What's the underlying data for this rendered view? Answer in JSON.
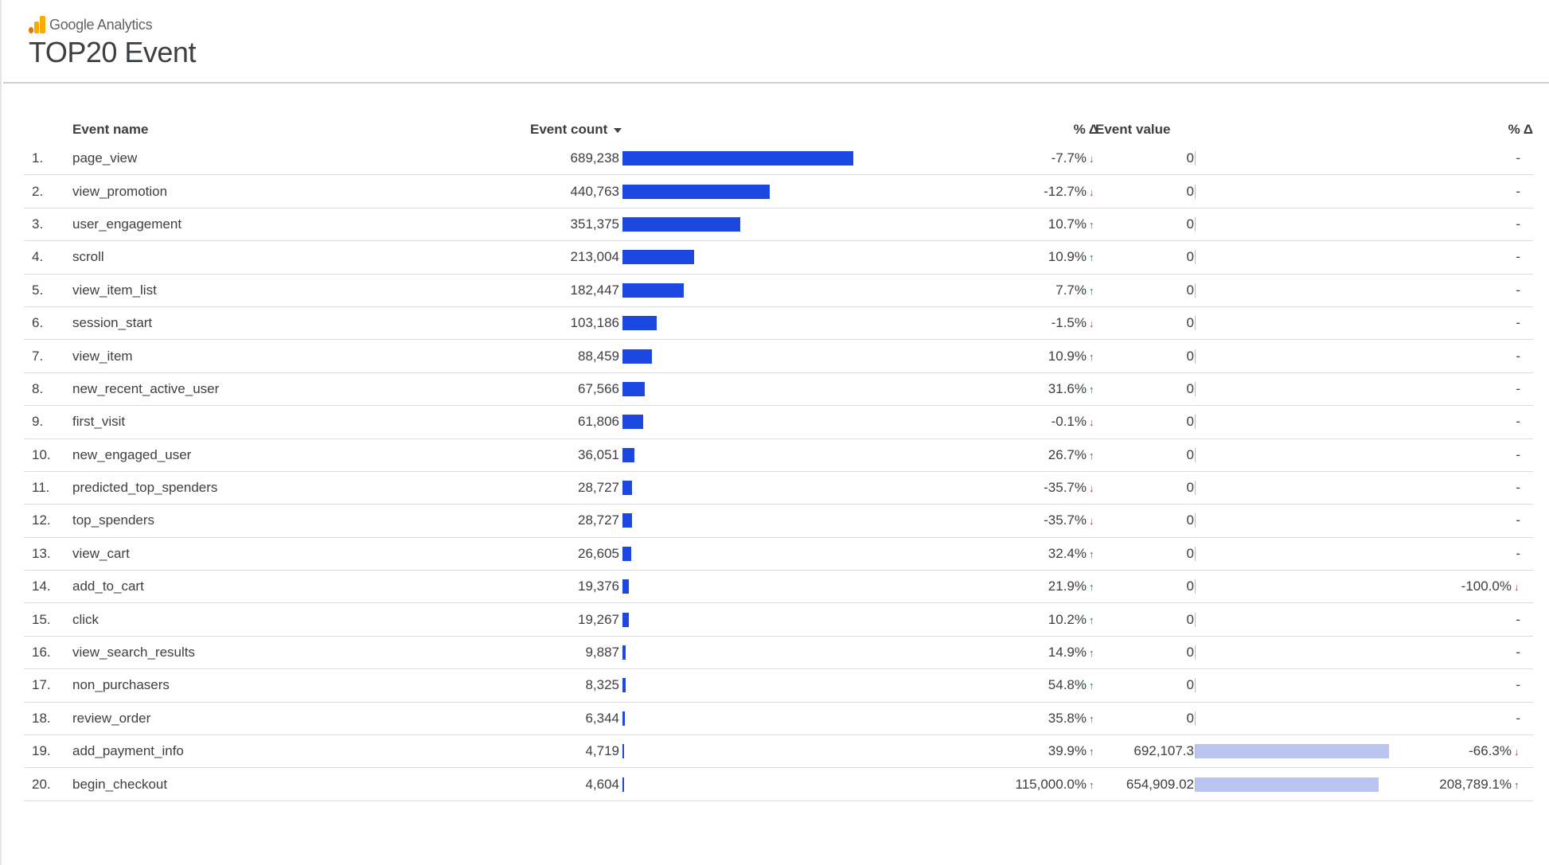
{
  "brand": {
    "name": "Google Analytics"
  },
  "title": "TOP20 Event",
  "colors": {
    "bar": "#1a48e0",
    "value_bar": "#b9c4f1",
    "up": "#188038",
    "down": "#d93025"
  },
  "columns": {
    "name": "Event name",
    "count": "Event count",
    "delta": "% Δ",
    "value": "Event value",
    "value_delta": "% Δ"
  },
  "bar_max": 689238,
  "value_bar_max": 692107.3,
  "rows": [
    {
      "idx": "1.",
      "name": "page_view",
      "count": "689,238",
      "count_num": 689238,
      "delta": "-7.7%",
      "dir": "down",
      "value": "0",
      "value_num": 0,
      "value_delta": "-",
      "vdir": ""
    },
    {
      "idx": "2.",
      "name": "view_promotion",
      "count": "440,763",
      "count_num": 440763,
      "delta": "-12.7%",
      "dir": "down",
      "value": "0",
      "value_num": 0,
      "value_delta": "-",
      "vdir": ""
    },
    {
      "idx": "3.",
      "name": "user_engagement",
      "count": "351,375",
      "count_num": 351375,
      "delta": "10.7%",
      "dir": "up",
      "value": "0",
      "value_num": 0,
      "value_delta": "-",
      "vdir": ""
    },
    {
      "idx": "4.",
      "name": "scroll",
      "count": "213,004",
      "count_num": 213004,
      "delta": "10.9%",
      "dir": "up",
      "value": "0",
      "value_num": 0,
      "value_delta": "-",
      "vdir": ""
    },
    {
      "idx": "5.",
      "name": "view_item_list",
      "count": "182,447",
      "count_num": 182447,
      "delta": "7.7%",
      "dir": "up",
      "value": "0",
      "value_num": 0,
      "value_delta": "-",
      "vdir": ""
    },
    {
      "idx": "6.",
      "name": "session_start",
      "count": "103,186",
      "count_num": 103186,
      "delta": "-1.5%",
      "dir": "down",
      "value": "0",
      "value_num": 0,
      "value_delta": "-",
      "vdir": ""
    },
    {
      "idx": "7.",
      "name": "view_item",
      "count": "88,459",
      "count_num": 88459,
      "delta": "10.9%",
      "dir": "up",
      "value": "0",
      "value_num": 0,
      "value_delta": "-",
      "vdir": ""
    },
    {
      "idx": "8.",
      "name": "new_recent_active_user",
      "count": "67,566",
      "count_num": 67566,
      "delta": "31.6%",
      "dir": "up",
      "value": "0",
      "value_num": 0,
      "value_delta": "-",
      "vdir": ""
    },
    {
      "idx": "9.",
      "name": "first_visit",
      "count": "61,806",
      "count_num": 61806,
      "delta": "-0.1%",
      "dir": "down",
      "value": "0",
      "value_num": 0,
      "value_delta": "-",
      "vdir": ""
    },
    {
      "idx": "10.",
      "name": "new_engaged_user",
      "count": "36,051",
      "count_num": 36051,
      "delta": "26.7%",
      "dir": "up",
      "value": "0",
      "value_num": 0,
      "value_delta": "-",
      "vdir": ""
    },
    {
      "idx": "11.",
      "name": "predicted_top_spenders",
      "count": "28,727",
      "count_num": 28727,
      "delta": "-35.7%",
      "dir": "down",
      "value": "0",
      "value_num": 0,
      "value_delta": "-",
      "vdir": ""
    },
    {
      "idx": "12.",
      "name": "top_spenders",
      "count": "28,727",
      "count_num": 28727,
      "delta": "-35.7%",
      "dir": "down",
      "value": "0",
      "value_num": 0,
      "value_delta": "-",
      "vdir": ""
    },
    {
      "idx": "13.",
      "name": "view_cart",
      "count": "26,605",
      "count_num": 26605,
      "delta": "32.4%",
      "dir": "up",
      "value": "0",
      "value_num": 0,
      "value_delta": "-",
      "vdir": ""
    },
    {
      "idx": "14.",
      "name": "add_to_cart",
      "count": "19,376",
      "count_num": 19376,
      "delta": "21.9%",
      "dir": "up",
      "value": "0",
      "value_num": 0,
      "value_delta": "-100.0%",
      "vdir": "down"
    },
    {
      "idx": "15.",
      "name": "click",
      "count": "19,267",
      "count_num": 19267,
      "delta": "10.2%",
      "dir": "up",
      "value": "0",
      "value_num": 0,
      "value_delta": "-",
      "vdir": ""
    },
    {
      "idx": "16.",
      "name": "view_search_results",
      "count": "9,887",
      "count_num": 9887,
      "delta": "14.9%",
      "dir": "up",
      "value": "0",
      "value_num": 0,
      "value_delta": "-",
      "vdir": ""
    },
    {
      "idx": "17.",
      "name": "non_purchasers",
      "count": "8,325",
      "count_num": 8325,
      "delta": "54.8%",
      "dir": "up",
      "value": "0",
      "value_num": 0,
      "value_delta": "-",
      "vdir": ""
    },
    {
      "idx": "18.",
      "name": "review_order",
      "count": "6,344",
      "count_num": 6344,
      "delta": "35.8%",
      "dir": "up",
      "value": "0",
      "value_num": 0,
      "value_delta": "-",
      "vdir": ""
    },
    {
      "idx": "19.",
      "name": "add_payment_info",
      "count": "4,719",
      "count_num": 4719,
      "delta": "39.9%",
      "dir": "up",
      "value": "692,107.3",
      "value_num": 692107.3,
      "value_delta": "-66.3%",
      "vdir": "down"
    },
    {
      "idx": "20.",
      "name": "begin_checkout",
      "count": "4,604",
      "count_num": 4604,
      "delta": "115,000.0%",
      "dir": "up",
      "value": "654,909.02",
      "value_num": 654909.02,
      "value_delta": "208,789.1%",
      "vdir": "up"
    }
  ]
}
